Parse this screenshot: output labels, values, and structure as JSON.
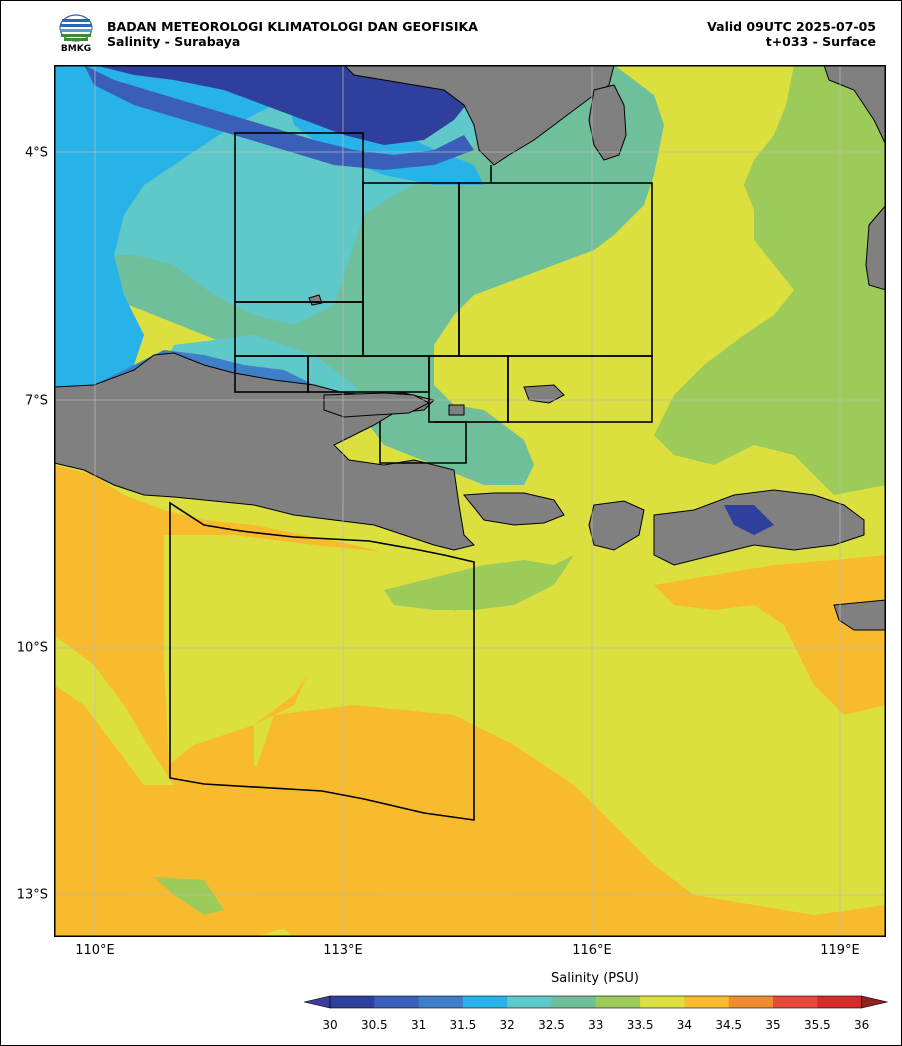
{
  "header": {
    "org": "BADAN METEOROLOGI KLIMATOLOGI DAN GEOFISIKA",
    "subtitle": "Salinity - Surabaya",
    "valid": "Valid 09UTC 2025-07-05",
    "lead": "t+033 - Surface",
    "logo_text": "BMKG"
  },
  "map": {
    "lat_labels": [
      "4°S",
      "7°S",
      "10°S",
      "13°S"
    ],
    "lon_labels": [
      "110°E",
      "113°E",
      "116°E",
      "119°E"
    ],
    "land_color": "#808080",
    "grid": true
  },
  "colorbar": {
    "title": "Salinity (PSU)",
    "ticks": [
      "30",
      "30.5",
      "31",
      "31.5",
      "32",
      "32.5",
      "33",
      "33.5",
      "34",
      "34.5",
      "35",
      "35.5",
      "36"
    ],
    "colors": [
      "#2e3f9c",
      "#3a5fb8",
      "#3f7fc8",
      "#28b3e8",
      "#5fc8c8",
      "#6fc09a",
      "#9ccb5a",
      "#dbe03f",
      "#f7bb2d",
      "#ef8c2f",
      "#e9493d",
      "#d42b2b"
    ],
    "under_color": "#3b3f9a",
    "over_color": "#8b2323"
  }
}
